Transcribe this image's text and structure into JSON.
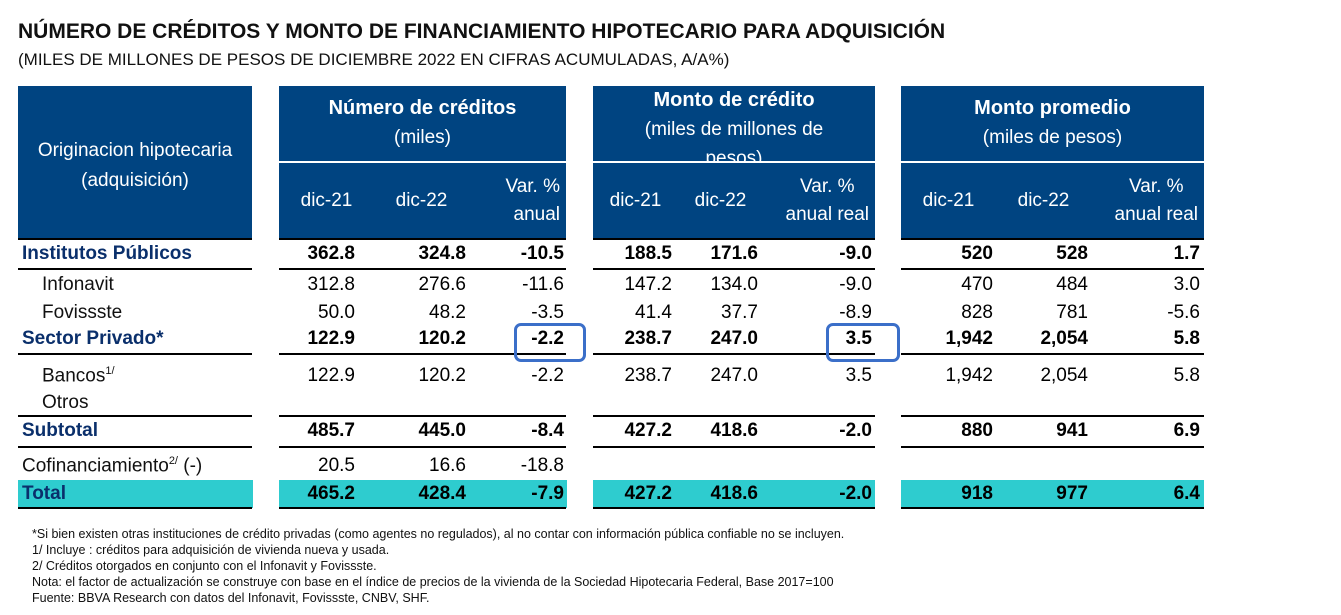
{
  "title": "NÚMERO DE CRÉDITOS Y MONTO DE FINANCIAMIENTO HIPOTECARIO PARA ADQUISICIÓN",
  "subtitle": "(MILES DE MILLONES DE PESOS DE DICIEMBRE 2022 EN CIFRAS ACUMULADAS,  A/A%)",
  "header": {
    "row_label_1": "Originacion hipotecaria",
    "row_label_2": "(adquisición)",
    "groups": [
      {
        "line1": "Número de créditos",
        "line2": "(miles)"
      },
      {
        "line1": "Monto de crédito",
        "line2": "(miles de millones de",
        "line3": "pesos)"
      },
      {
        "line1": "Monto promedio",
        "line2": "(miles de pesos)"
      }
    ],
    "cols": {
      "g1": [
        "dic-21",
        "dic-22",
        "Var. %",
        "anual"
      ],
      "g2": [
        "dic-21",
        "dic-22",
        "Var. %",
        "anual real"
      ],
      "g3": [
        "dic-21",
        "dic-22",
        "Var. %",
        "anual real"
      ]
    }
  },
  "rows": {
    "institutos": {
      "label": "Institutos Públicos",
      "v": [
        "362.8",
        "324.8",
        "-10.5",
        "188.5",
        "171.6",
        "-9.0",
        "520",
        "528",
        "1.7"
      ]
    },
    "infonavit": {
      "label": "Infonavit",
      "v": [
        "312.8",
        "276.6",
        "-11.6",
        "147.2",
        "134.0",
        "-9.0",
        "470",
        "484",
        "3.0"
      ]
    },
    "fovissste": {
      "label": "Fovissste",
      "v": [
        "50.0",
        "48.2",
        "-3.5",
        "41.4",
        "37.7",
        "-8.9",
        "828",
        "781",
        "-5.6"
      ]
    },
    "privado": {
      "label": "Sector Privado*",
      "v": [
        "122.9",
        "120.2",
        "-2.2",
        "238.7",
        "247.0",
        "3.5",
        "1,942",
        "2,054",
        "5.8"
      ]
    },
    "bancos": {
      "label": "Bancos",
      "sup": "1/",
      "v": [
        "122.9",
        "120.2",
        "-2.2",
        "238.7",
        "247.0",
        "3.5",
        "1,942",
        "2,054",
        "5.8"
      ]
    },
    "otros": {
      "label": "Otros"
    },
    "subtotal": {
      "label": "Subtotal",
      "v": [
        "485.7",
        "445.0",
        "-8.4",
        "427.2",
        "418.6",
        "-2.0",
        "880",
        "941",
        "6.9"
      ]
    },
    "cofin": {
      "label": "Cofinanciamiento",
      "sup": "2/",
      "suffix": " (-)",
      "v": [
        "20.5",
        "16.6",
        "-18.8"
      ]
    },
    "total": {
      "label": "Total",
      "v": [
        "465.2",
        "428.4",
        "-7.9",
        "427.2",
        "418.6",
        "-2.0",
        "918",
        "977",
        "6.4"
      ]
    }
  },
  "notes": [
    "*Si bien existen otras instituciones de crédito privadas (como agentes no regulados), al no contar con información pública confiable no se incluyen.",
    "1/ Incluye : créditos para adquisición de vivienda nueva y usada.",
    "2/ Créditos otorgados en conjunto con el Infonavit y Fovissste.",
    "Nota: el factor de actualización se construye con base en el índice de precios de la vivienda de la Sociedad Hipotecaria Federal, Base 2017=100",
    "Fuente: BBVA Research con datos del Infonavit, Fovissste, CNBV, SHF."
  ],
  "colors": {
    "header_bg": "#004481",
    "total_bg": "#2ecccf",
    "highlight": "#3b6fc9",
    "bold_label": "#0a2f6b"
  }
}
